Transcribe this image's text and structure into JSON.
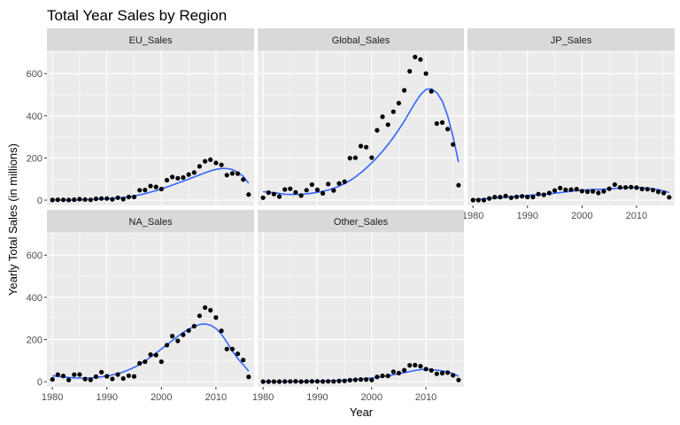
{
  "chart_data": {
    "type": "scatter",
    "title": "Total Year Sales by Region",
    "xlabel": "Year",
    "ylabel": "Yearly Total Sales (in millions)",
    "xlim": [
      1979,
      2017
    ],
    "ylim": [
      -25,
      710
    ],
    "x_ticks": [
      1980,
      1990,
      2000,
      2010
    ],
    "y_ticks": [
      0,
      200,
      400,
      600
    ],
    "grid": true,
    "smooth_line": true,
    "colors": {
      "panel_bg": "#EBEBEB",
      "strip_bg": "#D9D9D9",
      "grid": "#FFFFFF",
      "point": "#000000",
      "smooth": "#3366FF"
    },
    "years": [
      1980,
      1981,
      1982,
      1983,
      1984,
      1985,
      1986,
      1987,
      1988,
      1989,
      1990,
      1991,
      1992,
      1993,
      1994,
      1995,
      1996,
      1997,
      1998,
      1999,
      2000,
      2001,
      2002,
      2003,
      2004,
      2005,
      2006,
      2007,
      2008,
      2009,
      2010,
      2011,
      2012,
      2013,
      2014,
      2015,
      2016
    ],
    "panels": [
      {
        "name": "EU_Sales",
        "values": [
          0.5,
          1.8,
          1.6,
          0.8,
          2.1,
          4.7,
          3,
          1.4,
          6.6,
          7.6,
          7.6,
          3.9,
          11.7,
          4.7,
          14.9,
          14.9,
          47.3,
          48,
          66.9,
          62.7,
          52.7,
          94.9,
          109.7,
          103.8,
          107.3,
          121.6,
          130.7,
          160.2,
          184.4,
          191.6,
          176.6,
          167.3,
          118.8,
          126.5,
          125.7,
          97.7,
          26.8
        ],
        "smooth": [
          2,
          1,
          0,
          0,
          0,
          1,
          2,
          3,
          4,
          5,
          6,
          8,
          10,
          13,
          16,
          20,
          25,
          31,
          38,
          45,
          53,
          62,
          71,
          81,
          90,
          100,
          110,
          120,
          130,
          139,
          146,
          150,
          150,
          145,
          132,
          113,
          80
        ]
      },
      {
        "name": "Global_Sales",
        "values": [
          11.4,
          35.8,
          28.9,
          16.8,
          50.4,
          53.9,
          37.1,
          21.7,
          47.2,
          73.5,
          49.4,
          32.2,
          76.2,
          46,
          79.2,
          88.1,
          199.2,
          200.9,
          256.5,
          251.3,
          201.6,
          331.5,
          395.5,
          357.9,
          419.3,
          459.9,
          521.0,
          611.1,
          678.9,
          667.3,
          600.3,
          515.9,
          363.5,
          368.1,
          337.0,
          264.4,
          70.9
        ],
        "smooth": [
          40,
          38,
          35,
          32,
          28,
          27,
          27,
          28,
          30,
          33,
          37,
          42,
          48,
          56,
          66,
          78,
          93,
          110,
          130,
          152,
          176,
          203,
          232,
          264,
          298,
          335,
          375,
          418,
          462,
          500,
          525,
          528,
          510,
          470,
          400,
          300,
          180
        ]
      },
      {
        "name": "JP_Sales",
        "values": [
          0,
          0,
          0,
          8.1,
          14.3,
          14.6,
          19.8,
          11.6,
          15.8,
          18.4,
          14.9,
          14.8,
          28.9,
          25.3,
          33.9,
          45.8,
          57.4,
          48.9,
          50,
          52.3,
          42.8,
          39.9,
          41.8,
          34.2,
          41.7,
          54.3,
          73.7,
          60.3,
          60.3,
          61.9,
          59.5,
          53,
          51.8,
          47.6,
          39.5,
          33.7,
          13.7
        ],
        "smooth": [
          2,
          4,
          6,
          8,
          10,
          12,
          14,
          16,
          18,
          20,
          22,
          24,
          26,
          28,
          30,
          33,
          36,
          39,
          42,
          45,
          47,
          49,
          50,
          51,
          52,
          53,
          55,
          57,
          59,
          60,
          60,
          59,
          57,
          54,
          50,
          44,
          36
        ]
      },
      {
        "name": "NA_Sales",
        "values": [
          10.6,
          33.4,
          26.9,
          7.8,
          33.3,
          33.7,
          12.5,
          8.5,
          23.9,
          45.2,
          25.5,
          12.8,
          33.9,
          15.1,
          28.2,
          24.8,
          86.8,
          94.8,
          128.4,
          126.1,
          94.5,
          173.1,
          216.2,
          193.6,
          222.4,
          242.6,
          263.1,
          312.1,
          351.4,
          338.9,
          304.2,
          241.2,
          154.9,
          154.8,
          131.9,
          102.8,
          22.7
        ],
        "smooth": [
          28,
          25,
          22,
          20,
          18,
          17,
          17,
          18,
          20,
          23,
          27,
          32,
          38,
          46,
          56,
          68,
          82,
          98,
          116,
          135,
          155,
          175,
          195,
          215,
          233,
          249,
          262,
          271,
          274,
          268,
          252,
          225,
          188,
          145,
          110,
          80,
          50
        ]
      },
      {
        "name": "Other_Sales",
        "values": [
          0.1,
          0.3,
          0.3,
          0.1,
          0.7,
          0.9,
          1.9,
          0.2,
          1,
          1.4,
          1.4,
          0.7,
          1.6,
          0.9,
          2.7,
          3.4,
          7,
          8.8,
          10.4,
          10.3,
          7.6,
          22.6,
          27.4,
          27.4,
          47.4,
          40.6,
          54.2,
          77.3,
          78.5,
          73.4,
          60,
          53.5,
          37.1,
          39.9,
          43.2,
          30,
          7.9
        ],
        "smooth": [
          0,
          0,
          0,
          0,
          0,
          1,
          1,
          1,
          2,
          2,
          3,
          3,
          4,
          5,
          6,
          7,
          8,
          10,
          12,
          14,
          17,
          20,
          24,
          28,
          33,
          38,
          43,
          48,
          53,
          57,
          58,
          57,
          55,
          51,
          46,
          38,
          26
        ]
      }
    ]
  }
}
